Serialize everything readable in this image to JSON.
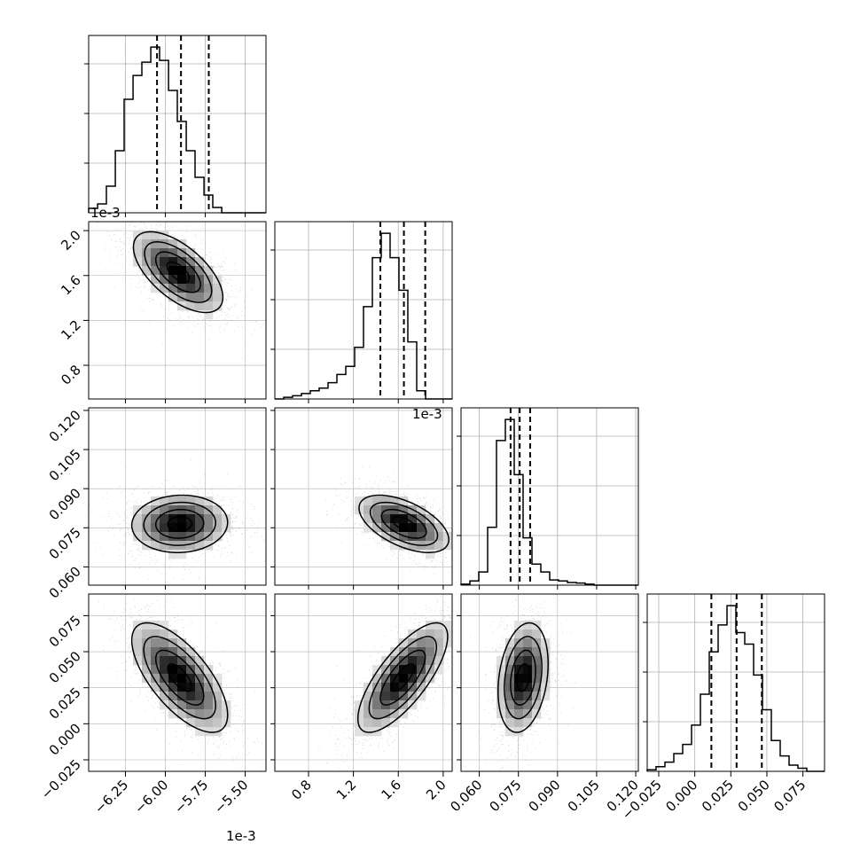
{
  "chart_data": {
    "type": "corner",
    "parameters": [
      {
        "index": 0,
        "range": [
          -6.48,
          -5.37
        ],
        "offset_text": "1e-3",
        "ticks": [
          -6.25,
          -6.0,
          -5.75,
          -5.5
        ],
        "tick_labels": [
          "−6.25",
          "−6.00",
          "−5.75",
          "−5.50"
        ]
      },
      {
        "index": 1,
        "range": [
          0.5,
          2.08
        ],
        "offset_text": "1e-3",
        "ticks": [
          0.8,
          1.2,
          1.6,
          2.0
        ],
        "tick_labels": [
          "0.8",
          "1.2",
          "1.6",
          "2.0"
        ]
      },
      {
        "index": 2,
        "range": [
          0.053,
          0.121
        ],
        "ticks": [
          0.06,
          0.075,
          0.09,
          0.105,
          0.12
        ],
        "tick_labels": [
          "0.060",
          "0.075",
          "0.090",
          "0.105",
          "0.120"
        ]
      },
      {
        "index": 3,
        "range": [
          -0.033,
          0.09
        ],
        "ticks": [
          -0.025,
          0.0,
          0.025,
          0.05,
          0.075
        ],
        "tick_labels": [
          "−0.025",
          "0.000",
          "0.025",
          "0.050",
          "0.075"
        ]
      }
    ],
    "marginals": [
      {
        "param": 0,
        "quantiles": [
          -6.052,
          -5.902,
          -5.728
        ],
        "bin_edges": [
          -6.48,
          -6.424,
          -6.369,
          -6.313,
          -6.258,
          -6.202,
          -6.147,
          -6.091,
          -6.036,
          -5.98,
          -5.925,
          -5.869,
          -5.814,
          -5.758,
          -5.703,
          -5.647,
          -5.592,
          -5.536,
          -5.481,
          -5.425,
          -5.37
        ],
        "counts": [
          0.5,
          1.0,
          3.0,
          7.0,
          12.8,
          15.5,
          17.0,
          18.7,
          17.2,
          13.8,
          10.3,
          7.0,
          4.0,
          2.0,
          0.6,
          0.0,
          0.0,
          0.0,
          0.0,
          0.0
        ]
      },
      {
        "param": 1,
        "quantiles": [
          1.44,
          1.65,
          1.84
        ],
        "bin_edges": [
          0.5,
          0.579,
          0.658,
          0.737,
          0.816,
          0.895,
          0.974,
          1.053,
          1.132,
          1.211,
          1.29,
          1.369,
          1.448,
          1.527,
          1.606,
          1.685,
          1.764,
          1.843,
          1.922,
          2.001,
          2.08
        ],
        "counts": [
          0.0,
          0.3,
          0.6,
          1.0,
          1.5,
          2.0,
          3.0,
          4.5,
          6.0,
          9.5,
          17.0,
          26.0,
          30.5,
          26.0,
          20.0,
          10.5,
          1.5,
          0.0,
          0.0,
          0.0
        ]
      },
      {
        "param": 2,
        "quantiles": [
          0.072,
          0.0755,
          0.0795
        ],
        "bin_edges": [
          0.053,
          0.0564,
          0.0598,
          0.0632,
          0.0666,
          0.07,
          0.0734,
          0.0768,
          0.0802,
          0.0836,
          0.087,
          0.0904,
          0.0938,
          0.0972,
          0.1006,
          0.104,
          0.1074,
          0.1108,
          0.1142,
          0.1176,
          0.121
        ],
        "counts": [
          0.2,
          0.8,
          2.5,
          11.0,
          27.5,
          31.5,
          21.0,
          9.0,
          4.0,
          2.5,
          1.0,
          0.8,
          0.5,
          0.4,
          0.2,
          0.0,
          0.0,
          0.0,
          0.0,
          0.0
        ]
      },
      {
        "param": 3,
        "quantiles": [
          0.0115,
          0.029,
          0.0465
        ],
        "bin_edges": [
          -0.033,
          -0.02685,
          -0.0207,
          -0.01455,
          -0.0084,
          -0.00225,
          0.0039,
          0.01005,
          0.0162,
          0.02235,
          0.0285,
          0.03465,
          0.0408,
          0.04695,
          0.0531,
          0.05925,
          0.0654,
          0.07155,
          0.0777,
          0.08385,
          0.09
        ],
        "counts": [
          0.2,
          0.6,
          1.2,
          2.3,
          3.5,
          6.0,
          10.0,
          15.5,
          19.0,
          21.5,
          18.0,
          16.5,
          12.5,
          8.0,
          4.0,
          2.0,
          0.8,
          0.4,
          0.0,
          0.0
        ]
      }
    ],
    "pairs": [
      {
        "x": 1,
        "y": 0,
        "mean": [
          -5.92,
          1.63
        ],
        "sd": [
          0.14,
          0.18
        ],
        "rho": -0.62
      },
      {
        "x": 2,
        "y": 0,
        "mean": [
          -5.91,
          0.0765
        ],
        "sd": [
          0.15,
          0.0055
        ],
        "rho": 0.05
      },
      {
        "x": 2,
        "y": 1,
        "mean": [
          1.65,
          0.0765
        ],
        "sd": [
          0.2,
          0.0055
        ],
        "rho": -0.55
      },
      {
        "x": 3,
        "y": 0,
        "mean": [
          -5.91,
          0.032
        ],
        "sd": [
          0.15,
          0.019
        ],
        "rho": -0.68
      },
      {
        "x": 3,
        "y": 1,
        "mean": [
          1.64,
          0.032
        ],
        "sd": [
          0.2,
          0.019
        ],
        "rho": 0.75
      },
      {
        "x": 3,
        "y": 2,
        "mean": [
          0.0768,
          0.032
        ],
        "sd": [
          0.0048,
          0.019
        ],
        "rho": 0.25
      }
    ],
    "contour_levels_sigma": [
      0.5,
      1.0,
      1.5,
      2.0
    ],
    "grid": true,
    "colors": {
      "line": "#000000",
      "grid": "#b0b0b0",
      "points": "#7f7f7f",
      "frame": "#000000"
    }
  }
}
